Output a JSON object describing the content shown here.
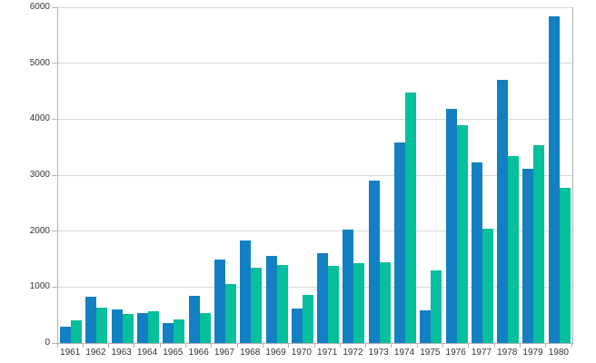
{
  "chart_data": {
    "type": "bar",
    "title": "",
    "xlabel": "",
    "ylabel": "",
    "legend": "none",
    "grid": "horizontal",
    "ylim": [
      0,
      6000
    ],
    "y_ticks": [
      "0",
      "1000",
      "2000",
      "3000",
      "4000",
      "5000",
      "6000"
    ],
    "categories": [
      "1961",
      "1962",
      "1963",
      "1964",
      "1965",
      "1966",
      "1967",
      "1968",
      "1969",
      "1970",
      "1971",
      "1972",
      "1973",
      "1974",
      "1975",
      "1976",
      "1977",
      "1978",
      "1979",
      "1980"
    ],
    "series": [
      {
        "name": "blue-series",
        "color": "#1280c2",
        "values": [
          300,
          830,
          600,
          530,
          350,
          840,
          1500,
          1840,
          1550,
          620,
          1600,
          2020,
          2900,
          3580,
          590,
          4190,
          3230,
          4700,
          3110,
          5830
        ]
      },
      {
        "name": "teal-series",
        "color": "#06bf9c",
        "values": [
          400,
          640,
          520,
          560,
          420,
          540,
          1050,
          1350,
          1390,
          860,
          1380,
          1420,
          1440,
          4480,
          1290,
          3900,
          2040,
          3340,
          3530,
          2780
        ]
      }
    ],
    "colors": {
      "axis": "#b3b3b3",
      "grid": "#d9d9d9",
      "labels": "#333333",
      "background": "#ffffff"
    }
  }
}
